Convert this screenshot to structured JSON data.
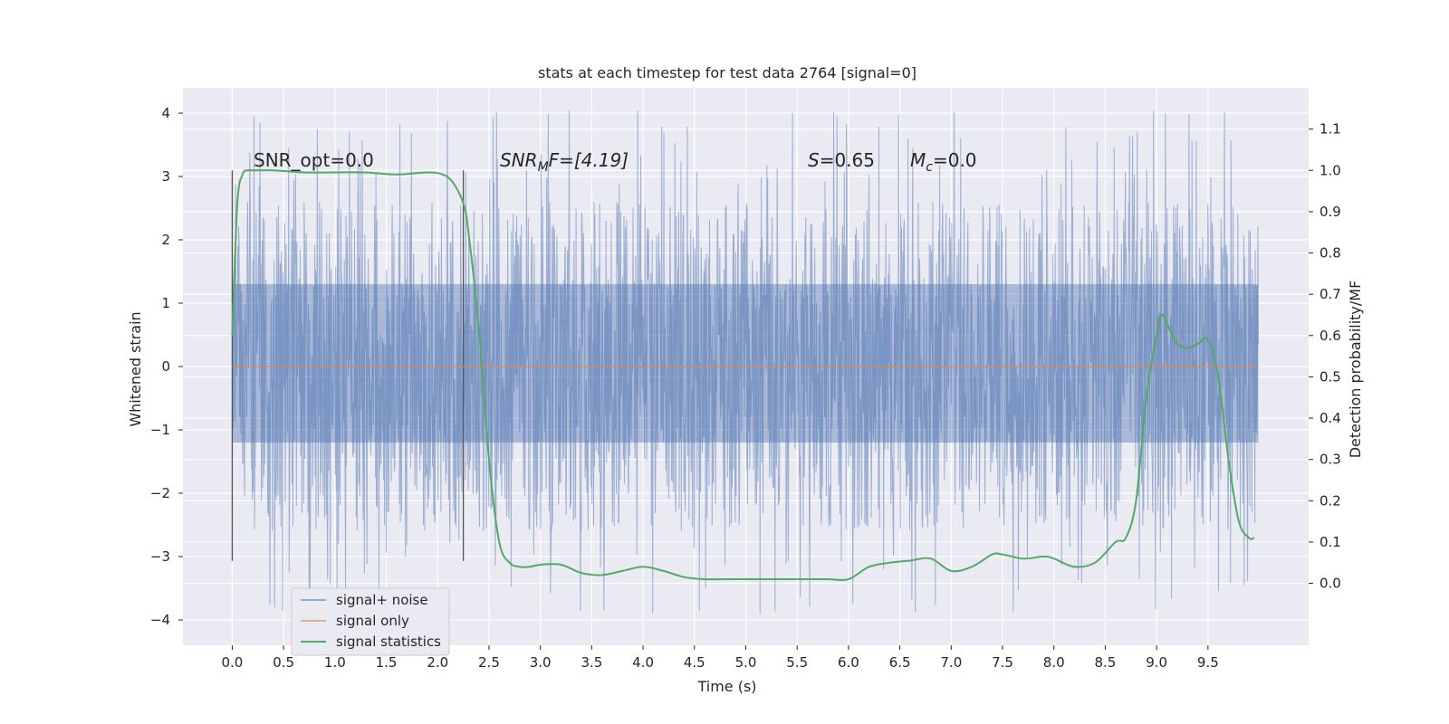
{
  "chart_data": {
    "type": "line",
    "title": "stats at each timestep for test data 2764 [signal=0]",
    "xlabel": "Time (s)",
    "ylabel": "Whitened strain",
    "y2label": "Detection probability/MF",
    "xlim": [
      -0.48,
      10.48
    ],
    "ylim": [
      -4.4,
      4.4
    ],
    "y2lim": [
      -0.15,
      1.2
    ],
    "x_ticks": [
      0.0,
      0.5,
      1.0,
      1.5,
      2.0,
      2.5,
      3.0,
      3.5,
      4.0,
      4.5,
      5.0,
      5.5,
      6.0,
      6.5,
      7.0,
      7.5,
      8.0,
      8.5,
      9.0,
      9.5
    ],
    "x_tick_labels": [
      "0.0",
      "0.5",
      "1.0",
      "1.5",
      "2.0",
      "2.5",
      "3.0",
      "3.5",
      "4.0",
      "4.5",
      "5.0",
      "5.5",
      "6.0",
      "6.5",
      "7.0",
      "7.5",
      "8.0",
      "8.5",
      "9.0",
      "9.5"
    ],
    "y_ticks": [
      -4,
      -3,
      -2,
      -1,
      0,
      1,
      2,
      3,
      4
    ],
    "y_tick_labels": [
      "−4",
      "−3",
      "−2",
      "−1",
      "0",
      "1",
      "2",
      "3",
      "4"
    ],
    "y2_ticks": [
      0.0,
      0.1,
      0.2,
      0.3,
      0.4,
      0.5,
      0.6,
      0.7,
      0.8,
      0.9,
      1.0,
      1.1
    ],
    "y2_tick_labels": [
      "0.0",
      "0.1",
      "0.2",
      "0.3",
      "0.4",
      "0.5",
      "0.6",
      "0.7",
      "0.8",
      "0.9",
      "1.0",
      "1.1"
    ],
    "grid": true,
    "legend_position": "lower-left",
    "legend": [
      {
        "label": "signal+ noise",
        "color": "#4c72b0"
      },
      {
        "label": "signal only",
        "color": "#dd8452"
      },
      {
        "label": "signal statistics",
        "color": "#55a868"
      }
    ],
    "annotations": {
      "snr_opt": "SNR_opt=0.0",
      "snr_mf_base": "SNR",
      "snr_mf_sub": "M",
      "snr_mf_rest": "F=[4.19]",
      "s_sym": "S",
      "s_val": "=0.65",
      "mc_base": "M",
      "mc_sub": "c",
      "mc_val": "=0.0"
    },
    "vlines": [
      0.0,
      2.25
    ],
    "series": [
      {
        "name": "signal+ noise",
        "axis": "left",
        "color": "#4c72b0",
        "x_range": [
          0.0,
          9.99
        ],
        "envelope": {
          "core": [
            -1.2,
            1.3
          ],
          "typical_peaks": [
            -2.6,
            2.6
          ],
          "extremes": [
            -3.9,
            4.05
          ]
        }
      },
      {
        "name": "signal only",
        "axis": "left",
        "color": "#dd8452",
        "x": [
          0.0,
          9.99
        ],
        "y": [
          0.0,
          0.0
        ]
      },
      {
        "name": "signal statistics",
        "axis": "right",
        "color": "#55a868",
        "x": [
          0.0,
          0.05,
          0.1,
          0.15,
          0.2,
          0.4,
          0.7,
          1.0,
          1.3,
          1.6,
          1.9,
          2.05,
          2.15,
          2.25,
          2.3,
          2.4,
          2.5,
          2.6,
          2.7,
          2.8,
          2.9,
          3.0,
          3.2,
          3.4,
          3.6,
          3.8,
          4.0,
          4.2,
          4.4,
          4.6,
          4.8,
          5.0,
          5.2,
          5.4,
          5.6,
          5.8,
          6.0,
          6.2,
          6.4,
          6.6,
          6.8,
          7.0,
          7.2,
          7.4,
          7.5,
          7.7,
          7.9,
          8.0,
          8.2,
          8.4,
          8.6,
          8.7,
          8.8,
          8.9,
          9.0,
          9.05,
          9.1,
          9.2,
          9.3,
          9.4,
          9.5,
          9.6,
          9.7,
          9.8,
          9.9,
          9.95
        ],
        "y": [
          0.6,
          0.92,
          0.99,
          1.0,
          1.0,
          1.0,
          0.995,
          0.995,
          0.995,
          0.99,
          0.995,
          0.99,
          0.97,
          0.92,
          0.85,
          0.62,
          0.3,
          0.1,
          0.05,
          0.04,
          0.04,
          0.045,
          0.045,
          0.025,
          0.02,
          0.03,
          0.04,
          0.03,
          0.015,
          0.01,
          0.01,
          0.01,
          0.01,
          0.01,
          0.01,
          0.01,
          0.01,
          0.04,
          0.05,
          0.055,
          0.06,
          0.03,
          0.04,
          0.07,
          0.07,
          0.06,
          0.065,
          0.06,
          0.04,
          0.05,
          0.1,
          0.11,
          0.2,
          0.45,
          0.6,
          0.65,
          0.63,
          0.58,
          0.57,
          0.58,
          0.59,
          0.5,
          0.3,
          0.15,
          0.11,
          0.11
        ]
      }
    ]
  }
}
